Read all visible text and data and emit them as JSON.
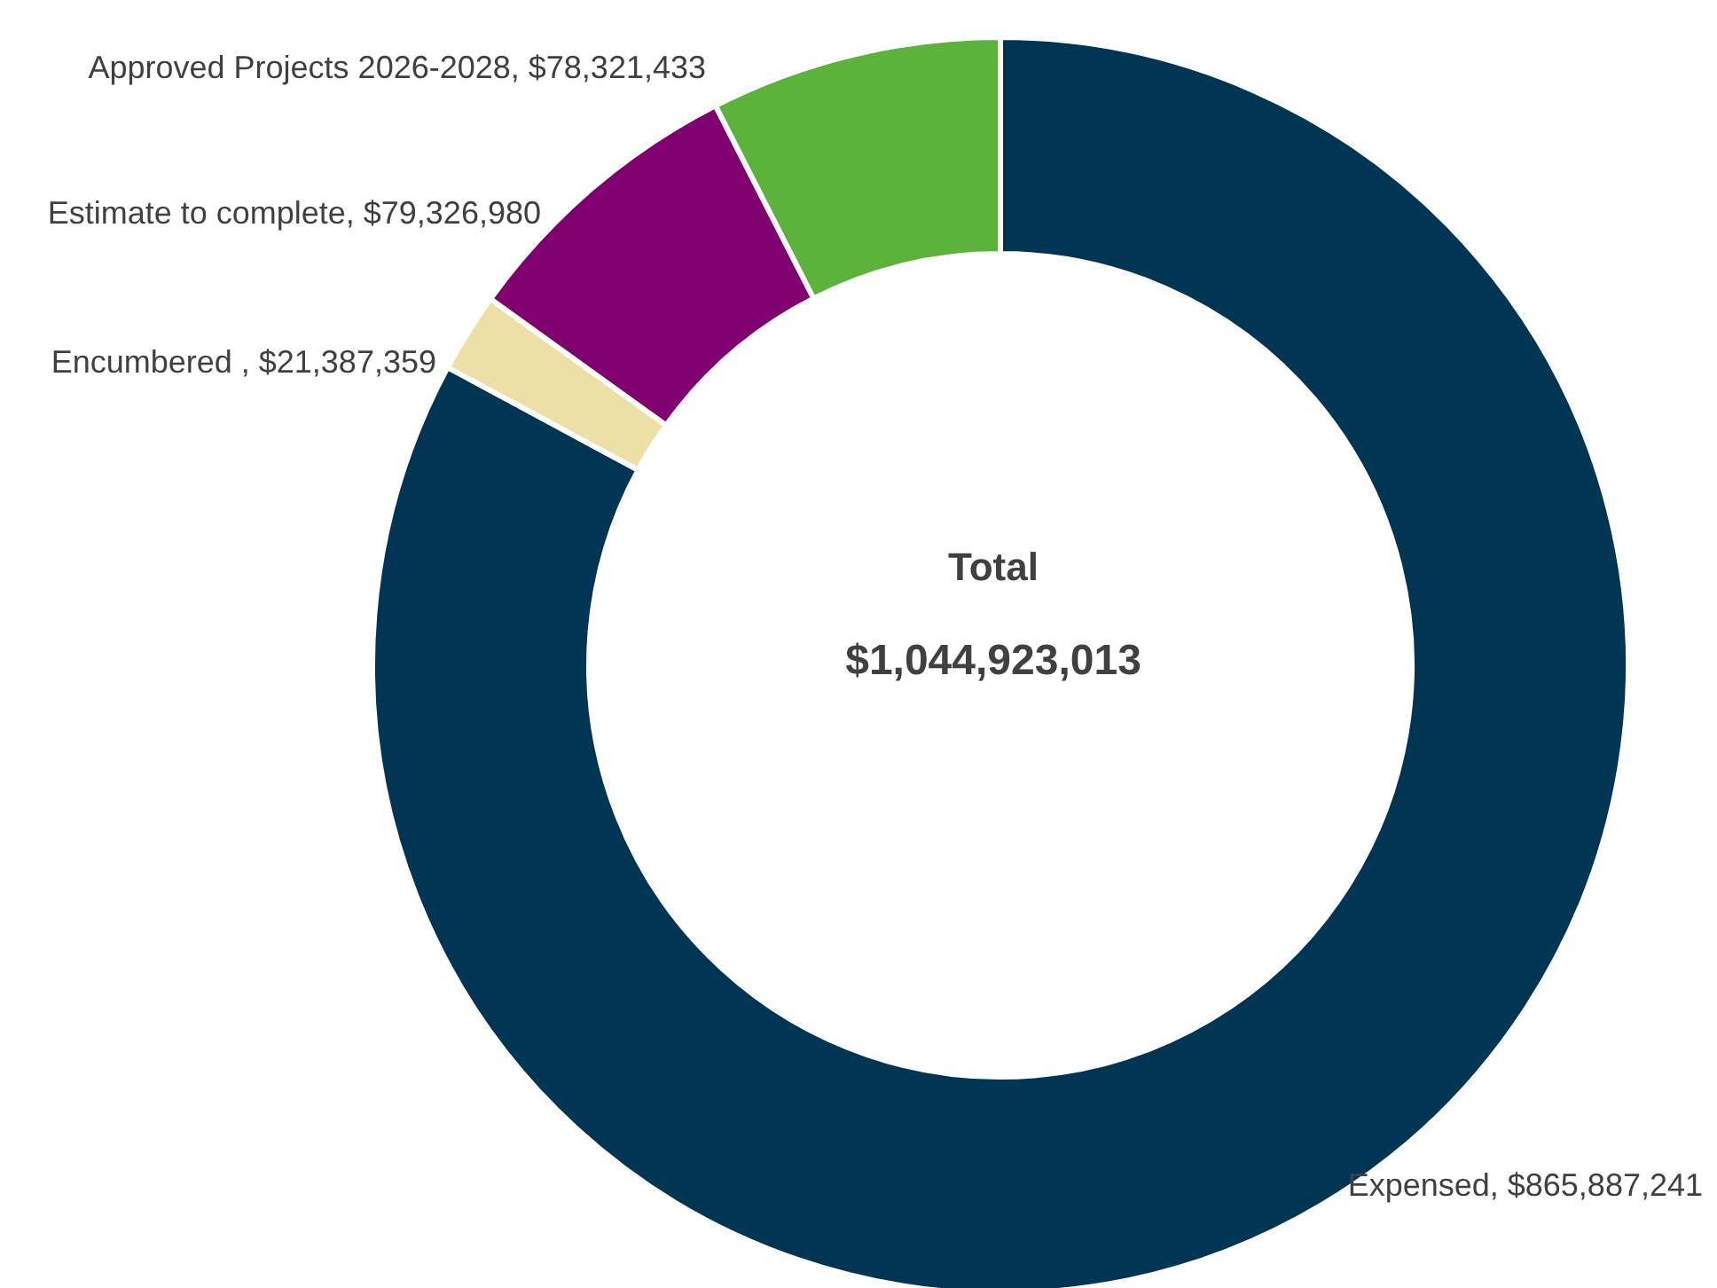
{
  "chart_data": {
    "type": "donut",
    "categories": [
      "Expensed",
      "Encumbered ",
      "Estimate to complete",
      "Approved Projects 2026-2028"
    ],
    "values": [
      865887241,
      21387359,
      79326980,
      78321433
    ],
    "colors": [
      "#003554",
      "#ede0a6",
      "#800070",
      "#5bb33c"
    ],
    "value_labels": [
      "$865,887,241",
      "$21,387,359",
      "$79,326,980",
      "$78,321,433"
    ],
    "annotations": [
      "Total",
      "$1,044,923,013"
    ]
  }
}
